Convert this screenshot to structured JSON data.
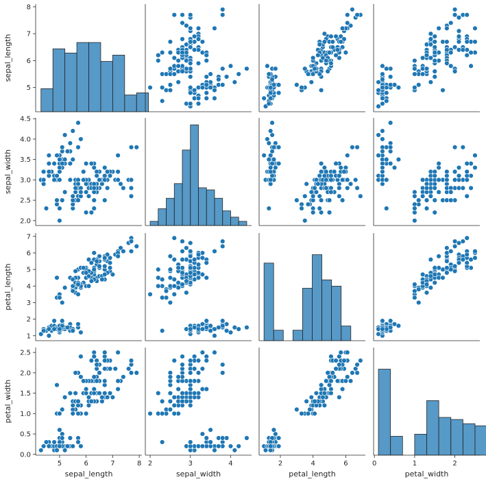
{
  "chart_data": {
    "type": "scatter",
    "variables": [
      "sepal_length",
      "sepal_width",
      "petal_length",
      "petal_width"
    ],
    "ranges": {
      "sepal_length": [
        4.1,
        8.1
      ],
      "sepal_width": [
        1.88,
        4.52
      ],
      "petal_length": [
        0.7,
        7.2
      ],
      "petal_width": [
        -0.02,
        2.62
      ]
    },
    "ticks": {
      "sepal_length": [
        5,
        6,
        7,
        8
      ],
      "sepal_width": [
        2.0,
        2.5,
        3.0,
        3.5,
        4.0,
        4.5
      ],
      "petal_length": [
        1,
        2,
        3,
        4,
        5,
        6,
        7
      ],
      "petal_width": [
        0.0,
        0.5,
        1.0,
        1.5,
        2.0,
        2.5
      ]
    },
    "ticks_x": {
      "sepal_length": [
        5,
        6,
        7,
        8
      ],
      "sepal_width": [
        2,
        3,
        4
      ],
      "petal_length": [
        2,
        4,
        6
      ],
      "petal_width": [
        0,
        1,
        2
      ]
    },
    "ticks_y": {
      "sepal_length": [
        5,
        6,
        7,
        8
      ],
      "sepal_width": [
        2.0,
        2.5,
        3.0,
        3.5,
        4.0,
        4.5
      ],
      "petal_length": [
        1,
        2,
        3,
        4,
        5,
        6,
        7
      ],
      "petal_width": [
        0.0,
        0.5,
        1.0,
        1.5,
        2.0,
        2.5
      ]
    },
    "histograms": {
      "sepal_length": {
        "bin_start": 4.3,
        "bin_width": 0.45,
        "counts": [
          11,
          30,
          28,
          33,
          33,
          24,
          27,
          8,
          9
        ]
      },
      "sepal_width": {
        "bin_start": 2.0,
        "bin_width": 0.2,
        "counts": [
          2,
          8,
          13,
          20,
          36,
          48,
          18,
          17,
          13,
          7,
          4,
          2
        ]
      },
      "petal_length": {
        "bin_start": 1.0,
        "bin_width": 0.59,
        "counts": [
          37,
          5,
          0,
          5,
          25,
          41,
          29,
          26,
          7
        ]
      },
      "petal_width": {
        "bin_start": 0.1,
        "bin_width": 0.3,
        "counts": [
          41,
          9,
          0,
          10,
          26,
          18,
          17,
          15,
          14
        ]
      }
    },
    "hist_count_max": 50,
    "points": [
      [
        5.1,
        3.5,
        1.4,
        0.2
      ],
      [
        4.9,
        3.0,
        1.4,
        0.2
      ],
      [
        4.7,
        3.2,
        1.3,
        0.2
      ],
      [
        4.6,
        3.1,
        1.5,
        0.2
      ],
      [
        5.0,
        3.6,
        1.4,
        0.2
      ],
      [
        5.4,
        3.9,
        1.7,
        0.4
      ],
      [
        4.6,
        3.4,
        1.4,
        0.3
      ],
      [
        5.0,
        3.4,
        1.5,
        0.2
      ],
      [
        4.4,
        2.9,
        1.4,
        0.2
      ],
      [
        4.9,
        3.1,
        1.5,
        0.1
      ],
      [
        5.4,
        3.7,
        1.5,
        0.2
      ],
      [
        4.8,
        3.4,
        1.6,
        0.2
      ],
      [
        4.8,
        3.0,
        1.4,
        0.1
      ],
      [
        4.3,
        3.0,
        1.1,
        0.1
      ],
      [
        5.8,
        4.0,
        1.2,
        0.2
      ],
      [
        5.7,
        4.4,
        1.5,
        0.4
      ],
      [
        5.4,
        3.9,
        1.3,
        0.4
      ],
      [
        5.1,
        3.5,
        1.4,
        0.3
      ],
      [
        5.7,
        3.8,
        1.7,
        0.3
      ],
      [
        5.1,
        3.8,
        1.5,
        0.3
      ],
      [
        5.4,
        3.4,
        1.7,
        0.2
      ],
      [
        5.1,
        3.7,
        1.5,
        0.4
      ],
      [
        4.6,
        3.6,
        1.0,
        0.2
      ],
      [
        5.1,
        3.3,
        1.7,
        0.5
      ],
      [
        4.8,
        3.4,
        1.9,
        0.2
      ],
      [
        5.0,
        3.0,
        1.6,
        0.2
      ],
      [
        5.0,
        3.4,
        1.6,
        0.4
      ],
      [
        5.2,
        3.5,
        1.5,
        0.2
      ],
      [
        5.2,
        3.4,
        1.4,
        0.2
      ],
      [
        4.7,
        3.2,
        1.6,
        0.2
      ],
      [
        4.8,
        3.1,
        1.6,
        0.2
      ],
      [
        5.4,
        3.4,
        1.5,
        0.4
      ],
      [
        5.2,
        4.1,
        1.5,
        0.1
      ],
      [
        5.5,
        4.2,
        1.4,
        0.2
      ],
      [
        4.9,
        3.1,
        1.5,
        0.2
      ],
      [
        5.0,
        3.2,
        1.2,
        0.2
      ],
      [
        5.5,
        3.5,
        1.3,
        0.2
      ],
      [
        4.9,
        3.6,
        1.4,
        0.1
      ],
      [
        4.4,
        3.0,
        1.3,
        0.2
      ],
      [
        5.1,
        3.4,
        1.5,
        0.2
      ],
      [
        5.0,
        3.5,
        1.3,
        0.3
      ],
      [
        4.5,
        2.3,
        1.3,
        0.3
      ],
      [
        4.4,
        3.2,
        1.3,
        0.2
      ],
      [
        5.0,
        3.5,
        1.6,
        0.6
      ],
      [
        5.1,
        3.8,
        1.9,
        0.4
      ],
      [
        4.8,
        3.0,
        1.4,
        0.3
      ],
      [
        5.1,
        3.8,
        1.6,
        0.2
      ],
      [
        4.6,
        3.2,
        1.4,
        0.2
      ],
      [
        5.3,
        3.7,
        1.5,
        0.2
      ],
      [
        5.0,
        3.3,
        1.4,
        0.2
      ],
      [
        7.0,
        3.2,
        4.7,
        1.4
      ],
      [
        6.4,
        3.2,
        4.5,
        1.5
      ],
      [
        6.9,
        3.1,
        4.9,
        1.5
      ],
      [
        5.5,
        2.3,
        4.0,
        1.3
      ],
      [
        6.5,
        2.8,
        4.6,
        1.5
      ],
      [
        5.7,
        2.8,
        4.5,
        1.3
      ],
      [
        6.3,
        3.3,
        4.7,
        1.6
      ],
      [
        4.9,
        2.4,
        3.3,
        1.0
      ],
      [
        6.6,
        2.9,
        4.6,
        1.3
      ],
      [
        5.2,
        2.7,
        3.9,
        1.4
      ],
      [
        5.0,
        2.0,
        3.5,
        1.0
      ],
      [
        5.9,
        3.0,
        4.2,
        1.5
      ],
      [
        6.0,
        2.2,
        4.0,
        1.0
      ],
      [
        6.1,
        2.9,
        4.7,
        1.4
      ],
      [
        5.6,
        2.9,
        3.6,
        1.3
      ],
      [
        6.7,
        3.1,
        4.4,
        1.4
      ],
      [
        5.6,
        3.0,
        4.5,
        1.5
      ],
      [
        5.8,
        2.7,
        4.1,
        1.0
      ],
      [
        6.2,
        2.2,
        4.5,
        1.5
      ],
      [
        5.6,
        2.5,
        3.9,
        1.1
      ],
      [
        5.9,
        3.2,
        4.8,
        1.8
      ],
      [
        6.1,
        2.8,
        4.0,
        1.3
      ],
      [
        6.3,
        2.5,
        4.9,
        1.5
      ],
      [
        6.1,
        2.8,
        4.7,
        1.2
      ],
      [
        6.4,
        2.9,
        4.3,
        1.3
      ],
      [
        6.6,
        3.0,
        4.4,
        1.4
      ],
      [
        6.8,
        2.8,
        4.8,
        1.4
      ],
      [
        6.7,
        3.0,
        5.0,
        1.7
      ],
      [
        6.0,
        2.9,
        4.5,
        1.5
      ],
      [
        5.7,
        2.6,
        3.5,
        1.0
      ],
      [
        5.5,
        2.4,
        3.8,
        1.1
      ],
      [
        5.5,
        2.4,
        3.7,
        1.0
      ],
      [
        5.8,
        2.7,
        3.9,
        1.2
      ],
      [
        6.0,
        2.7,
        5.1,
        1.6
      ],
      [
        5.4,
        3.0,
        4.5,
        1.5
      ],
      [
        6.0,
        3.4,
        4.5,
        1.6
      ],
      [
        6.7,
        3.1,
        4.7,
        1.5
      ],
      [
        6.3,
        2.3,
        4.4,
        1.3
      ],
      [
        5.6,
        3.0,
        4.1,
        1.3
      ],
      [
        5.5,
        2.5,
        4.0,
        1.3
      ],
      [
        5.5,
        2.6,
        4.4,
        1.2
      ],
      [
        6.1,
        3.0,
        4.6,
        1.4
      ],
      [
        5.8,
        2.6,
        4.0,
        1.2
      ],
      [
        5.0,
        2.3,
        3.3,
        1.0
      ],
      [
        5.6,
        2.7,
        4.2,
        1.3
      ],
      [
        5.7,
        3.0,
        4.2,
        1.2
      ],
      [
        5.7,
        2.9,
        4.2,
        1.3
      ],
      [
        6.2,
        2.9,
        4.3,
        1.3
      ],
      [
        5.1,
        2.5,
        3.0,
        1.1
      ],
      [
        5.7,
        2.8,
        4.1,
        1.3
      ],
      [
        6.3,
        3.3,
        6.0,
        2.5
      ],
      [
        5.8,
        2.7,
        5.1,
        1.9
      ],
      [
        7.1,
        3.0,
        5.9,
        2.1
      ],
      [
        6.3,
        2.9,
        5.6,
        1.8
      ],
      [
        6.5,
        3.0,
        5.8,
        2.2
      ],
      [
        7.6,
        3.0,
        6.6,
        2.1
      ],
      [
        4.9,
        2.5,
        4.5,
        1.7
      ],
      [
        7.3,
        2.9,
        6.3,
        1.8
      ],
      [
        6.7,
        2.5,
        5.8,
        1.8
      ],
      [
        7.2,
        3.6,
        6.1,
        2.5
      ],
      [
        6.5,
        3.2,
        5.1,
        2.0
      ],
      [
        6.4,
        2.7,
        5.3,
        1.9
      ],
      [
        6.8,
        3.0,
        5.5,
        2.1
      ],
      [
        5.7,
        2.5,
        5.0,
        2.0
      ],
      [
        5.8,
        2.8,
        5.1,
        2.4
      ],
      [
        6.4,
        3.2,
        5.3,
        2.3
      ],
      [
        6.5,
        3.0,
        5.5,
        1.8
      ],
      [
        7.7,
        3.8,
        6.7,
        2.2
      ],
      [
        7.7,
        2.6,
        6.9,
        2.3
      ],
      [
        6.0,
        2.2,
        5.0,
        1.5
      ],
      [
        6.9,
        3.2,
        5.7,
        2.3
      ],
      [
        5.6,
        2.8,
        4.9,
        2.0
      ],
      [
        7.7,
        2.8,
        6.7,
        2.0
      ],
      [
        6.3,
        2.7,
        4.9,
        1.8
      ],
      [
        6.7,
        3.3,
        5.7,
        2.1
      ],
      [
        7.2,
        3.2,
        6.0,
        1.8
      ],
      [
        6.2,
        2.8,
        4.8,
        1.8
      ],
      [
        6.1,
        3.0,
        4.9,
        1.8
      ],
      [
        6.4,
        2.8,
        5.6,
        2.1
      ],
      [
        7.2,
        3.0,
        5.8,
        1.6
      ],
      [
        7.4,
        2.8,
        6.1,
        1.9
      ],
      [
        7.9,
        3.8,
        6.4,
        2.0
      ],
      [
        6.4,
        2.8,
        5.6,
        2.2
      ],
      [
        6.3,
        2.8,
        5.1,
        1.5
      ],
      [
        6.1,
        2.6,
        5.6,
        1.4
      ],
      [
        7.7,
        3.0,
        6.1,
        2.3
      ],
      [
        6.3,
        3.4,
        5.6,
        2.4
      ],
      [
        6.4,
        3.1,
        5.5,
        1.8
      ],
      [
        6.0,
        3.0,
        4.8,
        1.8
      ],
      [
        6.9,
        3.1,
        5.4,
        2.1
      ],
      [
        6.7,
        3.1,
        5.6,
        2.4
      ],
      [
        6.9,
        3.1,
        5.1,
        2.3
      ],
      [
        5.8,
        2.7,
        5.1,
        1.9
      ],
      [
        6.8,
        3.2,
        5.9,
        2.3
      ],
      [
        6.7,
        3.3,
        5.7,
        2.5
      ],
      [
        6.7,
        3.0,
        5.2,
        2.3
      ],
      [
        6.3,
        2.5,
        5.0,
        1.9
      ],
      [
        6.5,
        3.0,
        5.2,
        2.0
      ],
      [
        6.2,
        3.4,
        5.4,
        2.3
      ],
      [
        5.9,
        3.0,
        5.1,
        1.8
      ]
    ]
  }
}
